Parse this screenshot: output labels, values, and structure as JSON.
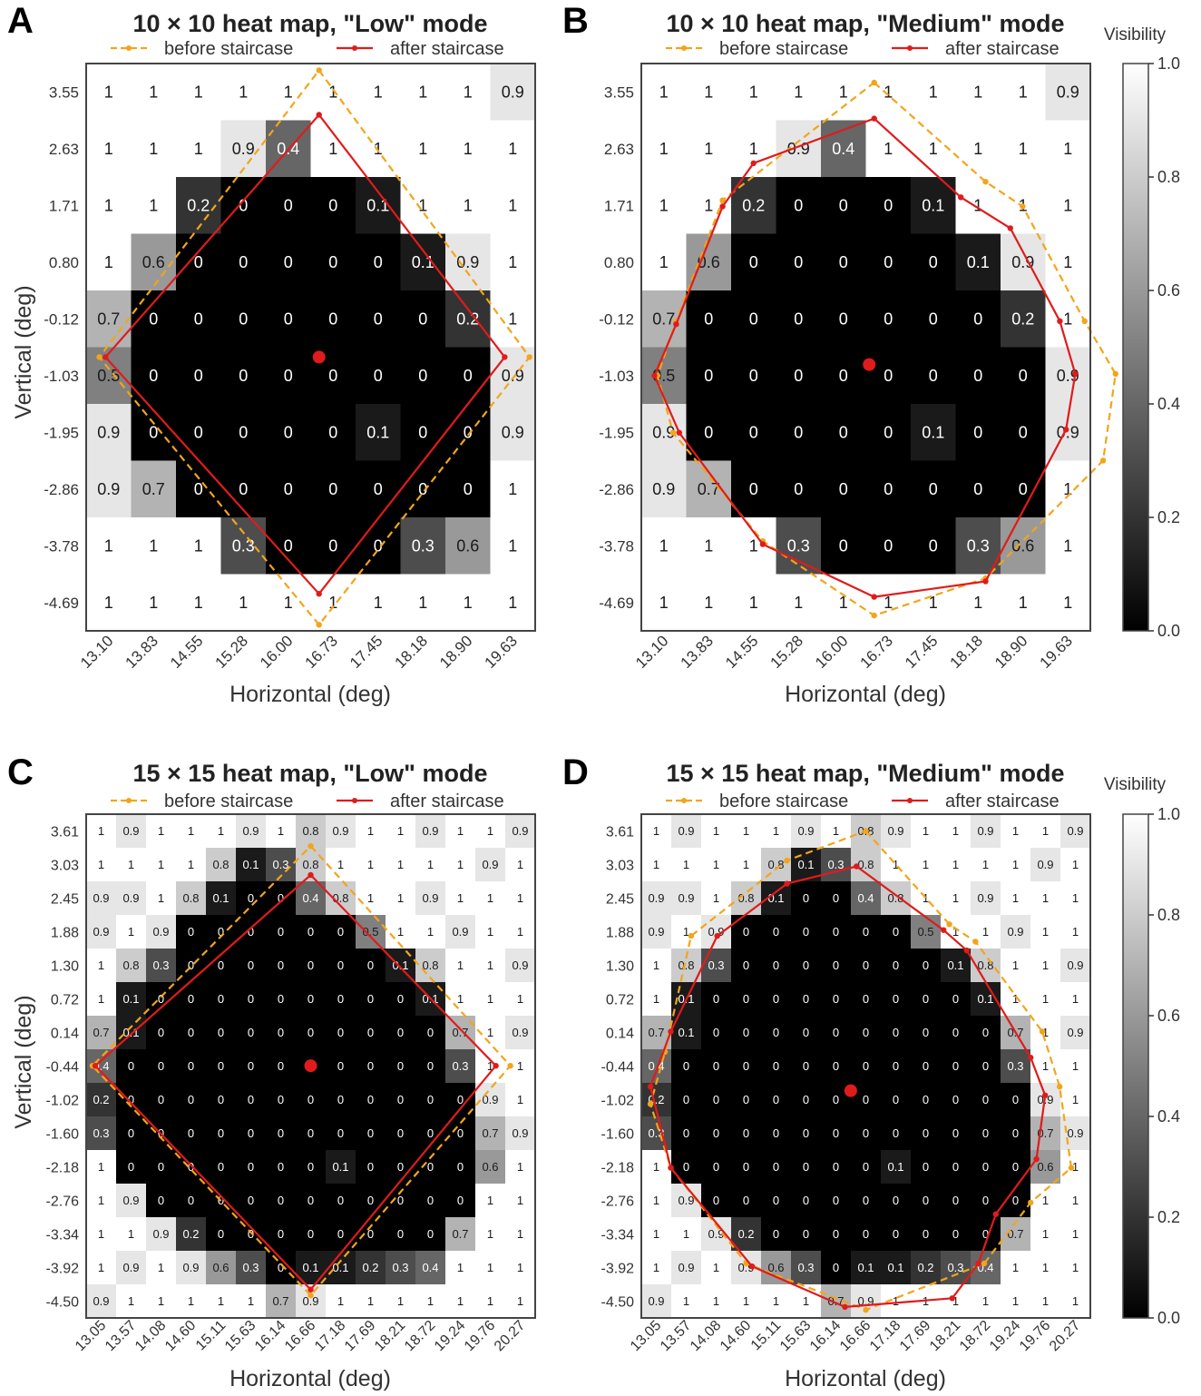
{
  "colors": {
    "before": "#f2a51a",
    "after": "#e01b1b",
    "frame": "#444444"
  },
  "legend": {
    "before_label": "before staircase",
    "after_label": "after staircase"
  },
  "colorbar": {
    "label": "Visibility",
    "ticks": [
      "0.0",
      "0.2",
      "0.4",
      "0.6",
      "0.8",
      "1.0"
    ]
  },
  "chart_data": [
    {
      "panel": "A",
      "type": "heatmap",
      "title": "10 × 10 heat map, \"Low\" mode",
      "xlabel": "Horizontal (deg)",
      "ylabel": "Vertical (deg)",
      "x_ticks": [
        "13.10",
        "13.83",
        "14.55",
        "15.28",
        "16.00",
        "16.73",
        "17.45",
        "18.18",
        "18.90",
        "19.63"
      ],
      "y_ticks": [
        "3.55",
        "2.63",
        "1.71",
        "0.80",
        "-0.12",
        "-1.03",
        "-1.95",
        "-2.86",
        "-3.78",
        "-4.69"
      ],
      "colorscale": "grayscale, 0.0 = black, 1.0 = white",
      "values": [
        [
          1,
          1,
          1,
          1,
          1,
          1,
          1,
          1,
          1,
          0.9
        ],
        [
          1,
          1,
          1,
          0.9,
          0.4,
          1,
          1,
          1,
          1,
          1
        ],
        [
          1,
          1,
          0.2,
          0,
          0,
          0,
          0.1,
          1,
          1,
          1
        ],
        [
          1,
          0.6,
          0,
          0,
          0,
          0,
          0,
          0.1,
          0.9,
          1
        ],
        [
          0.7,
          0,
          0,
          0,
          0,
          0,
          0,
          0,
          0.2,
          1
        ],
        [
          0.5,
          0,
          0,
          0,
          0,
          0,
          0,
          0,
          0,
          0.9
        ],
        [
          0.9,
          0,
          0,
          0,
          0,
          0,
          0.1,
          0,
          0,
          0.9
        ],
        [
          0.9,
          0.7,
          0,
          0,
          0,
          0,
          0,
          0,
          0,
          1
        ],
        [
          1,
          1,
          1,
          0.3,
          0,
          0,
          0,
          0.3,
          0.6,
          1
        ],
        [
          1,
          1,
          1,
          1,
          1,
          1,
          1,
          1,
          1,
          1
        ]
      ],
      "center_point": [
        16.5,
        -0.73
      ],
      "before_boundary": [
        [
          16.5,
          3.9
        ],
        [
          19.9,
          -0.73
        ],
        [
          16.5,
          -5.05
        ],
        [
          12.95,
          -0.73
        ]
      ],
      "after_boundary": [
        [
          16.5,
          3.18
        ],
        [
          19.5,
          -0.73
        ],
        [
          16.5,
          -4.55
        ],
        [
          13.05,
          -0.73
        ]
      ]
    },
    {
      "panel": "B",
      "type": "heatmap",
      "title": "10 × 10 heat map, \"Medium\" mode",
      "xlabel": "Horizontal (deg)",
      "ylabel": "",
      "x_ticks": [
        "13.10",
        "13.83",
        "14.55",
        "15.28",
        "16.00",
        "16.73",
        "17.45",
        "18.18",
        "18.90",
        "19.63"
      ],
      "y_ticks": [
        "3.55",
        "2.63",
        "1.71",
        "0.80",
        "-0.12",
        "-1.03",
        "-1.95",
        "-2.86",
        "-3.78",
        "-4.69"
      ],
      "colorscale": "grayscale, 0.0 = black, 1.0 = white",
      "values": [
        [
          1,
          1,
          1,
          1,
          1,
          1,
          1,
          1,
          1,
          0.9
        ],
        [
          1,
          1,
          1,
          0.9,
          0.4,
          1,
          1,
          1,
          1,
          1
        ],
        [
          1,
          1,
          0.2,
          0,
          0,
          0,
          0.1,
          1,
          1,
          1
        ],
        [
          1,
          0.6,
          0,
          0,
          0,
          0,
          0,
          0.1,
          0.9,
          1
        ],
        [
          0.7,
          0,
          0,
          0,
          0,
          0,
          0,
          0,
          0.2,
          1
        ],
        [
          0.5,
          0,
          0,
          0,
          0,
          0,
          0,
          0,
          0,
          0.9
        ],
        [
          0.9,
          0,
          0,
          0,
          0,
          0,
          0.1,
          0,
          0,
          0.9
        ],
        [
          0.9,
          0.7,
          0,
          0,
          0,
          0,
          0,
          0,
          0,
          1
        ],
        [
          1,
          1,
          1,
          0.3,
          0,
          0,
          0,
          0.3,
          0.6,
          1
        ],
        [
          1,
          1,
          1,
          1,
          1,
          1,
          1,
          1,
          1,
          1
        ]
      ],
      "center_point": [
        16.42,
        -0.85
      ],
      "before_boundary": [
        [
          16.5,
          3.7
        ],
        [
          18.3,
          2.1
        ],
        [
          18.9,
          1.7
        ],
        [
          19.9,
          -0.15
        ],
        [
          20.4,
          -1.0
        ],
        [
          20.2,
          -2.4
        ],
        [
          18.3,
          -4.3
        ],
        [
          16.5,
          -4.9
        ],
        [
          14.7,
          -3.7
        ],
        [
          13.25,
          -1.95
        ],
        [
          13.0,
          -1.03
        ],
        [
          13.3,
          -0.15
        ],
        [
          14.05,
          1.8
        ]
      ],
      "after_boundary": [
        [
          16.5,
          3.12
        ],
        [
          17.9,
          1.85
        ],
        [
          18.7,
          1.35
        ],
        [
          19.5,
          -0.15
        ],
        [
          19.75,
          -1.0
        ],
        [
          19.6,
          -1.9
        ],
        [
          18.3,
          -4.35
        ],
        [
          16.5,
          -4.6
        ],
        [
          14.7,
          -3.75
        ],
        [
          13.35,
          -1.95
        ],
        [
          12.95,
          -1.03
        ],
        [
          13.3,
          -0.2
        ],
        [
          14.05,
          1.7
        ],
        [
          14.55,
          2.4
        ]
      ]
    },
    {
      "panel": "C",
      "type": "heatmap",
      "title": "15 × 15 heat map, \"Low\" mode",
      "xlabel": "Horizontal (deg)",
      "ylabel": "Vertical (deg)",
      "x_ticks": [
        "13.05",
        "13.57",
        "14.08",
        "14.60",
        "15.11",
        "15.63",
        "16.14",
        "16.66",
        "17.18",
        "17.69",
        "18.21",
        "18.72",
        "19.24",
        "19.76",
        "20.27"
      ],
      "y_ticks": [
        "3.61",
        "3.03",
        "2.45",
        "1.88",
        "1.30",
        "0.72",
        "0.14",
        "-0.44",
        "-1.02",
        "-1.60",
        "-2.18",
        "-2.76",
        "-3.34",
        "-3.92",
        "-4.50"
      ],
      "colorscale": "grayscale, 0.0 = black, 1.0 = white",
      "values": [
        [
          1,
          0.9,
          1,
          1,
          1,
          0.9,
          1,
          0.8,
          0.9,
          1,
          1,
          0.9,
          1,
          1,
          0.9
        ],
        [
          1,
          1,
          1,
          1,
          0.8,
          0.1,
          0.3,
          0.8,
          1,
          1,
          1,
          1,
          1,
          0.9,
          1
        ],
        [
          0.9,
          0.9,
          1,
          0.8,
          0.1,
          0,
          0,
          0.4,
          0.8,
          1,
          1,
          0.9,
          1,
          1,
          1
        ],
        [
          0.9,
          1,
          0.9,
          0,
          0,
          0,
          0,
          0,
          0,
          0.5,
          1,
          1,
          0.9,
          1,
          1
        ],
        [
          1,
          0.8,
          0.3,
          0,
          0,
          0,
          0,
          0,
          0,
          0,
          0.1,
          0.8,
          1,
          1,
          0.9
        ],
        [
          1,
          0.1,
          0,
          0,
          0,
          0,
          0,
          0,
          0,
          0,
          0,
          0.1,
          1,
          1,
          1
        ],
        [
          0.7,
          0.1,
          0,
          0,
          0,
          0,
          0,
          0,
          0,
          0,
          0,
          0,
          0.7,
          1,
          0.9
        ],
        [
          0.4,
          0,
          0,
          0,
          0,
          0,
          0,
          0,
          0,
          0,
          0,
          0,
          0.3,
          1,
          1
        ],
        [
          0.2,
          0,
          0,
          0,
          0,
          0,
          0,
          0,
          0,
          0,
          0,
          0,
          0,
          0.9,
          1
        ],
        [
          0.3,
          0,
          0,
          0,
          0,
          0,
          0,
          0,
          0,
          0,
          0,
          0,
          0,
          0.7,
          0.9
        ],
        [
          1,
          0,
          0,
          0,
          0,
          0,
          0,
          0,
          0.1,
          0,
          0,
          0,
          0,
          0.6,
          1
        ],
        [
          1,
          0.9,
          0,
          0,
          0,
          0,
          0,
          0,
          0,
          0,
          0,
          0,
          0,
          1,
          1
        ],
        [
          1,
          1,
          0.9,
          0.2,
          0,
          0,
          0,
          0,
          0,
          0,
          0,
          0,
          0.7,
          1,
          1
        ],
        [
          1,
          0.9,
          1,
          0.9,
          0.6,
          0.3,
          0,
          0.1,
          0.1,
          0.2,
          0.3,
          0.4,
          1,
          1,
          1
        ],
        [
          0.9,
          1,
          1,
          1,
          1,
          1,
          0.7,
          0.9,
          1,
          1,
          1,
          1,
          1,
          1,
          1
        ]
      ],
      "center_point": [
        16.66,
        -0.44
      ],
      "before_boundary": [
        [
          16.66,
          3.35
        ],
        [
          20.1,
          -0.44
        ],
        [
          16.66,
          -4.4
        ],
        [
          12.9,
          -0.44
        ]
      ],
      "after_boundary": [
        [
          16.66,
          2.85
        ],
        [
          19.85,
          -0.44
        ],
        [
          16.66,
          -4.3
        ],
        [
          12.95,
          -0.44
        ]
      ]
    },
    {
      "panel": "D",
      "type": "heatmap",
      "title": "15 × 15 heat map, \"Medium\" mode",
      "xlabel": "Horizontal (deg)",
      "ylabel": "",
      "x_ticks": [
        "13.05",
        "13.57",
        "14.08",
        "14.60",
        "15.11",
        "15.63",
        "16.14",
        "16.66",
        "17.18",
        "17.69",
        "18.21",
        "18.72",
        "19.24",
        "19.76",
        "20.27"
      ],
      "y_ticks": [
        "3.61",
        "3.03",
        "2.45",
        "1.88",
        "1.30",
        "0.72",
        "0.14",
        "-0.44",
        "-1.02",
        "-1.60",
        "-2.18",
        "-2.76",
        "-3.34",
        "-3.92",
        "-4.50"
      ],
      "colorscale": "grayscale, 0.0 = black, 1.0 = white",
      "values": [
        [
          1,
          0.9,
          1,
          1,
          1,
          0.9,
          1,
          0.8,
          0.9,
          1,
          1,
          0.9,
          1,
          1,
          0.9
        ],
        [
          1,
          1,
          1,
          1,
          0.8,
          0.1,
          0.3,
          0.8,
          1,
          1,
          1,
          1,
          1,
          0.9,
          1
        ],
        [
          0.9,
          0.9,
          1,
          0.8,
          0.1,
          0,
          0,
          0.4,
          0.8,
          1,
          1,
          0.9,
          1,
          1,
          1
        ],
        [
          0.9,
          1,
          0.9,
          0,
          0,
          0,
          0,
          0,
          0,
          0.5,
          1,
          1,
          0.9,
          1,
          1
        ],
        [
          1,
          0.8,
          0.3,
          0,
          0,
          0,
          0,
          0,
          0,
          0,
          0.1,
          0.8,
          1,
          1,
          0.9
        ],
        [
          1,
          0.1,
          0,
          0,
          0,
          0,
          0,
          0,
          0,
          0,
          0,
          0.1,
          1,
          1,
          1
        ],
        [
          0.7,
          0.1,
          0,
          0,
          0,
          0,
          0,
          0,
          0,
          0,
          0,
          0,
          0.7,
          1,
          0.9
        ],
        [
          0.4,
          0,
          0,
          0,
          0,
          0,
          0,
          0,
          0,
          0,
          0,
          0,
          0.3,
          1,
          1
        ],
        [
          0.2,
          0,
          0,
          0,
          0,
          0,
          0,
          0,
          0,
          0,
          0,
          0,
          0,
          0.9,
          1
        ],
        [
          0.3,
          0,
          0,
          0,
          0,
          0,
          0,
          0,
          0,
          0,
          0,
          0,
          0,
          0.7,
          0.9
        ],
        [
          1,
          0,
          0,
          0,
          0,
          0,
          0,
          0,
          0.1,
          0,
          0,
          0,
          0,
          0.6,
          1
        ],
        [
          1,
          0.9,
          0,
          0,
          0,
          0,
          0,
          0,
          0,
          0,
          0,
          0,
          0,
          1,
          1
        ],
        [
          1,
          1,
          0.9,
          0.2,
          0,
          0,
          0,
          0,
          0,
          0,
          0,
          0,
          0.7,
          1,
          1
        ],
        [
          1,
          0.9,
          1,
          0.9,
          0.6,
          0.3,
          0,
          0.1,
          0.1,
          0.2,
          0.3,
          0.4,
          1,
          1,
          1
        ],
        [
          0.9,
          1,
          1,
          1,
          1,
          1,
          0.7,
          0.9,
          1,
          1,
          1,
          1,
          1,
          1,
          1
        ]
      ],
      "center_point": [
        16.4,
        -0.87
      ],
      "before_boundary": [
        [
          16.66,
          3.61
        ],
        [
          18.1,
          2.0
        ],
        [
          18.55,
          1.7
        ],
        [
          19.7,
          0.15
        ],
        [
          20.0,
          -0.8
        ],
        [
          20.2,
          -2.2
        ],
        [
          19.5,
          -2.8
        ],
        [
          18.7,
          -3.85
        ],
        [
          16.66,
          -4.65
        ],
        [
          14.6,
          -3.85
        ],
        [
          13.3,
          -2.2
        ],
        [
          12.95,
          -1.1
        ],
        [
          13.2,
          -0.2
        ],
        [
          13.65,
          1.8
        ],
        [
          15.3,
          3.1
        ]
      ],
      "after_boundary": [
        [
          16.5,
          3.0
        ],
        [
          18.0,
          1.9
        ],
        [
          18.4,
          1.55
        ],
        [
          19.5,
          -0.3
        ],
        [
          19.75,
          -0.95
        ],
        [
          19.6,
          -2.05
        ],
        [
          18.9,
          -3.0
        ],
        [
          18.6,
          -3.85
        ],
        [
          18.15,
          -4.45
        ],
        [
          16.3,
          -4.6
        ],
        [
          14.7,
          -3.9
        ],
        [
          13.3,
          -2.2
        ],
        [
          12.95,
          -0.8
        ],
        [
          13.3,
          0.15
        ],
        [
          14.1,
          1.8
        ],
        [
          15.3,
          2.7
        ]
      ]
    }
  ],
  "panels": [
    {
      "letter": "A"
    },
    {
      "letter": "B"
    },
    {
      "letter": "C"
    },
    {
      "letter": "D"
    }
  ]
}
